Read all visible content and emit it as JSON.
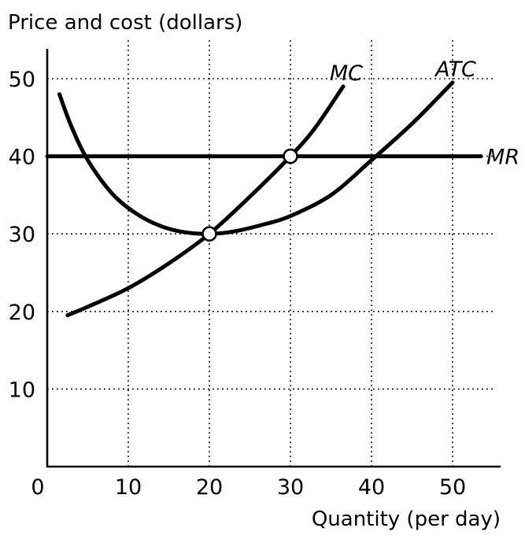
{
  "chart_data": {
    "type": "line",
    "ylabel": "Price and cost (dollars)",
    "xlabel": "Quantity (per day)",
    "xlim": [
      0,
      55
    ],
    "ylim": [
      0,
      55
    ],
    "x_ticks": [
      0,
      10,
      20,
      30,
      40,
      50
    ],
    "y_ticks": [
      10,
      20,
      30,
      40,
      50
    ],
    "grid": true,
    "series": [
      {
        "name": "MC",
        "points": [
          [
            2.5,
            19.5
          ],
          [
            5,
            20.6
          ],
          [
            10,
            23
          ],
          [
            15,
            26.2
          ],
          [
            20,
            30
          ],
          [
            25,
            34.8
          ],
          [
            30,
            40
          ],
          [
            33,
            43.6
          ],
          [
            36.5,
            49
          ]
        ]
      },
      {
        "name": "ATC",
        "points": [
          [
            1.5,
            48
          ],
          [
            3,
            43.8
          ],
          [
            5,
            39.5
          ],
          [
            8,
            35.2
          ],
          [
            11,
            32.6
          ],
          [
            14,
            31
          ],
          [
            17,
            30.2
          ],
          [
            20,
            30
          ],
          [
            23,
            30.3
          ],
          [
            27,
            31.3
          ],
          [
            30,
            32.3
          ],
          [
            35,
            35
          ],
          [
            40,
            39.5
          ],
          [
            45,
            44.2
          ],
          [
            50,
            49.5
          ]
        ]
      },
      {
        "name": "MR",
        "points": [
          [
            0,
            40
          ],
          [
            53.5,
            40
          ]
        ]
      }
    ],
    "points_marked": [
      {
        "x": 20,
        "y": 30
      },
      {
        "x": 30,
        "y": 40
      }
    ]
  }
}
